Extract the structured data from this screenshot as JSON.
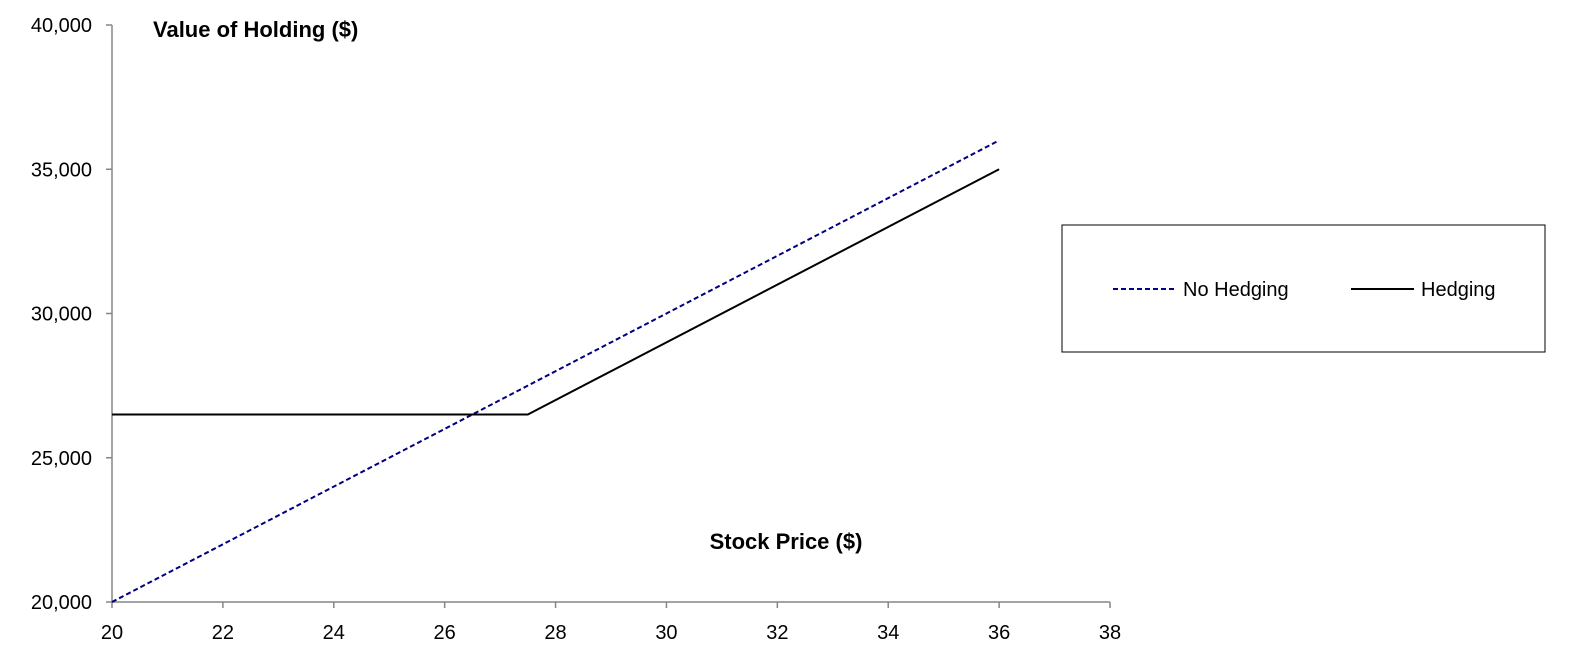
{
  "chart_data": {
    "type": "line",
    "ylabel": "Value of Holding ($)",
    "xlabel": "Stock Price ($)",
    "xlim": [
      20,
      38
    ],
    "ylim": [
      20000,
      40000
    ],
    "x_ticks": [
      20,
      22,
      24,
      26,
      28,
      30,
      32,
      34,
      36,
      38
    ],
    "y_ticks": [
      20000,
      25000,
      30000,
      35000,
      40000
    ],
    "y_tick_labels": [
      "20,000",
      "25,000",
      "30,000",
      "35,000",
      "40,000"
    ],
    "legend_position": "right",
    "series": [
      {
        "name": "No Hedging",
        "color": "#000080",
        "style": "dashed",
        "points": [
          [
            20,
            20000
          ],
          [
            36,
            36000
          ]
        ]
      },
      {
        "name": "Hedging",
        "color": "#000000",
        "style": "solid",
        "points": [
          [
            20,
            26500
          ],
          [
            27.5,
            26500
          ],
          [
            36,
            35000
          ]
        ]
      }
    ]
  }
}
